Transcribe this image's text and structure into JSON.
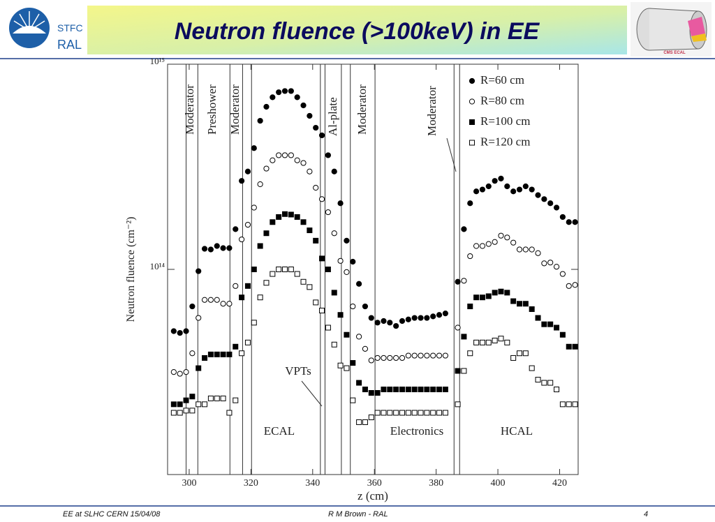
{
  "header": {
    "logo_lines": [
      "STFC",
      "RAL"
    ],
    "title": "Neutron fluence (>100keV) in EE",
    "figure_label": "CMS ECAL"
  },
  "footer": {
    "left": "EE at SLHC CERN 15/04/08",
    "center": "R M Brown - RAL",
    "page": "4"
  },
  "chart_data": {
    "type": "scatter",
    "xlabel": "z (cm)",
    "ylabel": "Neutron fluence (cm⁻²)",
    "log_y": true,
    "legend": "upper right",
    "xlim": [
      293,
      426
    ],
    "xticks": [
      300,
      320,
      340,
      360,
      380,
      400,
      420
    ],
    "ylim": [
      10000000000000.0,
      1000000000000000.0
    ],
    "yticks": [
      {
        "value": 100000000000000.0,
        "label": "10¹⁴"
      },
      {
        "value": 1000000000000000.0,
        "label": "10¹⁵"
      }
    ],
    "boundaries": [
      299,
      302.8,
      313.2,
      317.3,
      320.2,
      342.5,
      344,
      349.3,
      352.2,
      360.2,
      385.8,
      387.6
    ],
    "annotations": [
      "Moderator",
      "Preshower",
      "Moderator",
      "Al-plate",
      "Moderator",
      "Moderator",
      "VPTs",
      "ECAL",
      "Electronics",
      "HCAL"
    ],
    "x": [
      295,
      297,
      299,
      301,
      303,
      305,
      307,
      309,
      311,
      313,
      315,
      317,
      319,
      321,
      323,
      325,
      327,
      329,
      331,
      333,
      335,
      337,
      339,
      341,
      343,
      345,
      347,
      349,
      351,
      353,
      355,
      357,
      359,
      361,
      363,
      365,
      367,
      369,
      371,
      373,
      375,
      377,
      379,
      381,
      383,
      387,
      389,
      391,
      393,
      395,
      397,
      399,
      401,
      403,
      405,
      407,
      409,
      411,
      413,
      415,
      417,
      419,
      421,
      423,
      425
    ],
    "series": [
      {
        "name": "R=60 cm",
        "color": "#000000",
        "marker": "circle",
        "filled": true,
        "values": [
          50000000000000.0,
          49000000000000.0,
          50000000000000.0,
          66000000000000.0,
          98000000000000.0,
          126000000000000.0,
          125000000000000.0,
          130000000000000.0,
          127000000000000.0,
          127000000000000.0,
          157000000000000.0,
          270000000000000.0,
          300000000000000.0,
          390000000000000.0,
          530000000000000.0,
          620000000000000.0,
          690000000000000.0,
          730000000000000.0,
          740000000000000.0,
          740000000000000.0,
          690000000000000.0,
          630000000000000.0,
          560000000000000.0,
          490000000000000.0,
          450000000000000.0,
          360000000000000.0,
          300000000000000.0,
          210000000000000.0,
          138000000000000.0,
          109000000000000.0,
          85000000000000.0,
          66000000000000.0,
          58000000000000.0,
          55000000000000.0,
          56000000000000.0,
          55000000000000.0,
          53000000000000.0,
          56000000000000.0,
          57000000000000.0,
          58000000000000.0,
          58000000000000.0,
          58000000000000.0,
          59000000000000.0,
          60000000000000.0,
          61000000000000.0,
          87000000000000.0,
          157000000000000.0,
          210000000000000.0,
          240000000000000.0,
          245000000000000.0,
          254000000000000.0,
          270000000000000.0,
          277000000000000.0,
          254000000000000.0,
          240000000000000.0,
          245000000000000.0,
          254000000000000.0,
          245000000000000.0,
          230000000000000.0,
          220000000000000.0,
          210000000000000.0,
          200000000000000.0,
          180000000000000.0,
          170000000000000.0,
          170000000000000.0
        ]
      },
      {
        "name": "R=80 cm",
        "color": "#000000",
        "marker": "circle",
        "filled": false,
        "values": [
          31600000000000.0,
          31000000000000.0,
          31600000000000.0,
          39000000000000.0,
          58000000000000.0,
          71000000000000.0,
          71000000000000.0,
          71000000000000.0,
          68000000000000.0,
          68000000000000.0,
          83000000000000.0,
          140000000000000.0,
          165000000000000.0,
          200000000000000.0,
          260000000000000.0,
          310000000000000.0,
          340000000000000.0,
          360000000000000.0,
          360000000000000.0,
          360000000000000.0,
          340000000000000.0,
          330000000000000.0,
          300000000000000.0,
          250000000000000.0,
          220000000000000.0,
          190000000000000.0,
          150000000000000.0,
          110000000000000.0,
          97000000000000.0,
          66000000000000.0,
          47000000000000.0,
          41000000000000.0,
          36000000000000.0,
          37000000000000.0,
          37000000000000.0,
          37000000000000.0,
          37000000000000.0,
          37000000000000.0,
          38000000000000.0,
          38000000000000.0,
          38000000000000.0,
          38000000000000.0,
          38000000000000.0,
          38000000000000.0,
          38000000000000.0,
          52000000000000.0,
          88000000000000.0,
          116000000000000.0,
          130000000000000.0,
          130000000000000.0,
          133000000000000.0,
          136000000000000.0,
          146000000000000.0,
          143000000000000.0,
          135000000000000.0,
          125000000000000.0,
          125000000000000.0,
          125000000000000.0,
          120000000000000.0,
          107000000000000.0,
          108000000000000.0,
          103000000000000.0,
          95000000000000.0,
          83000000000000.0,
          84000000000000.0
        ]
      },
      {
        "name": "R=100 cm",
        "color": "#000000",
        "marker": "square",
        "filled": true,
        "values": [
          22000000000000.0,
          22000000000000.0,
          23000000000000.0,
          24000000000000.0,
          33000000000000.0,
          37000000000000.0,
          38500000000000.0,
          38500000000000.0,
          38500000000000.0,
          38500000000000.0,
          42000000000000.0,
          73000000000000.0,
          83000000000000.0,
          100000000000000.0,
          130000000000000.0,
          150000000000000.0,
          170000000000000.0,
          180000000000000.0,
          186000000000000.0,
          185000000000000.0,
          180000000000000.0,
          170000000000000.0,
          155000000000000.0,
          138000000000000.0,
          113000000000000.0,
          100000000000000.0,
          77000000000000.0,
          60000000000000.0,
          48000000000000.0,
          35000000000000.0,
          28000000000000.0,
          26000000000000.0,
          25000000000000.0,
          25000000000000.0,
          26000000000000.0,
          26000000000000.0,
          26000000000000.0,
          26000000000000.0,
          26000000000000.0,
          26000000000000.0,
          26000000000000.0,
          26000000000000.0,
          26000000000000.0,
          26000000000000.0,
          26000000000000.0,
          32000000000000.0,
          47000000000000.0,
          66000000000000.0,
          73000000000000.0,
          73000000000000.0,
          74000000000000.0,
          77000000000000.0,
          78000000000000.0,
          77000000000000.0,
          70000000000000.0,
          68000000000000.0,
          68000000000000.0,
          64000000000000.0,
          58000000000000.0,
          54000000000000.0,
          54000000000000.0,
          52000000000000.0,
          48000000000000.0,
          42000000000000.0,
          42000000000000.0
        ]
      },
      {
        "name": "R=120 cm",
        "color": "#000000",
        "marker": "square",
        "filled": false,
        "values": [
          20000000000000.0,
          20000000000000.0,
          20500000000000.0,
          20500000000000.0,
          22000000000000.0,
          22000000000000.0,
          23500000000000.0,
          23500000000000.0,
          23500000000000.0,
          20000000000000.0,
          23000000000000.0,
          39000000000000.0,
          44000000000000.0,
          55000000000000.0,
          73000000000000.0,
          86000000000000.0,
          95000000000000.0,
          100000000000000.0,
          100000000000000.0,
          100000000000000.0,
          95000000000000.0,
          87000000000000.0,
          82000000000000.0,
          69000000000000.0,
          63000000000000.0,
          52000000000000.0,
          43000000000000.0,
          34000000000000.0,
          33000000000000.0,
          23000000000000.0,
          18000000000000.0,
          18000000000000.0,
          19000000000000.0,
          20000000000000.0,
          20000000000000.0,
          20000000000000.0,
          20000000000000.0,
          20000000000000.0,
          20000000000000.0,
          20000000000000.0,
          20000000000000.0,
          20000000000000.0,
          20000000000000.0,
          20000000000000.0,
          20000000000000.0,
          22000000000000.0,
          32000000000000.0,
          39000000000000.0,
          44000000000000.0,
          44000000000000.0,
          44000000000000.0,
          45000000000000.0,
          46000000000000.0,
          44000000000000.0,
          37000000000000.0,
          39000000000000.0,
          39000000000000.0,
          33000000000000.0,
          29000000000000.0,
          28000000000000.0,
          28000000000000.0,
          26000000000000.0,
          22000000000000.0,
          22000000000000.0,
          22000000000000.0
        ]
      }
    ]
  }
}
